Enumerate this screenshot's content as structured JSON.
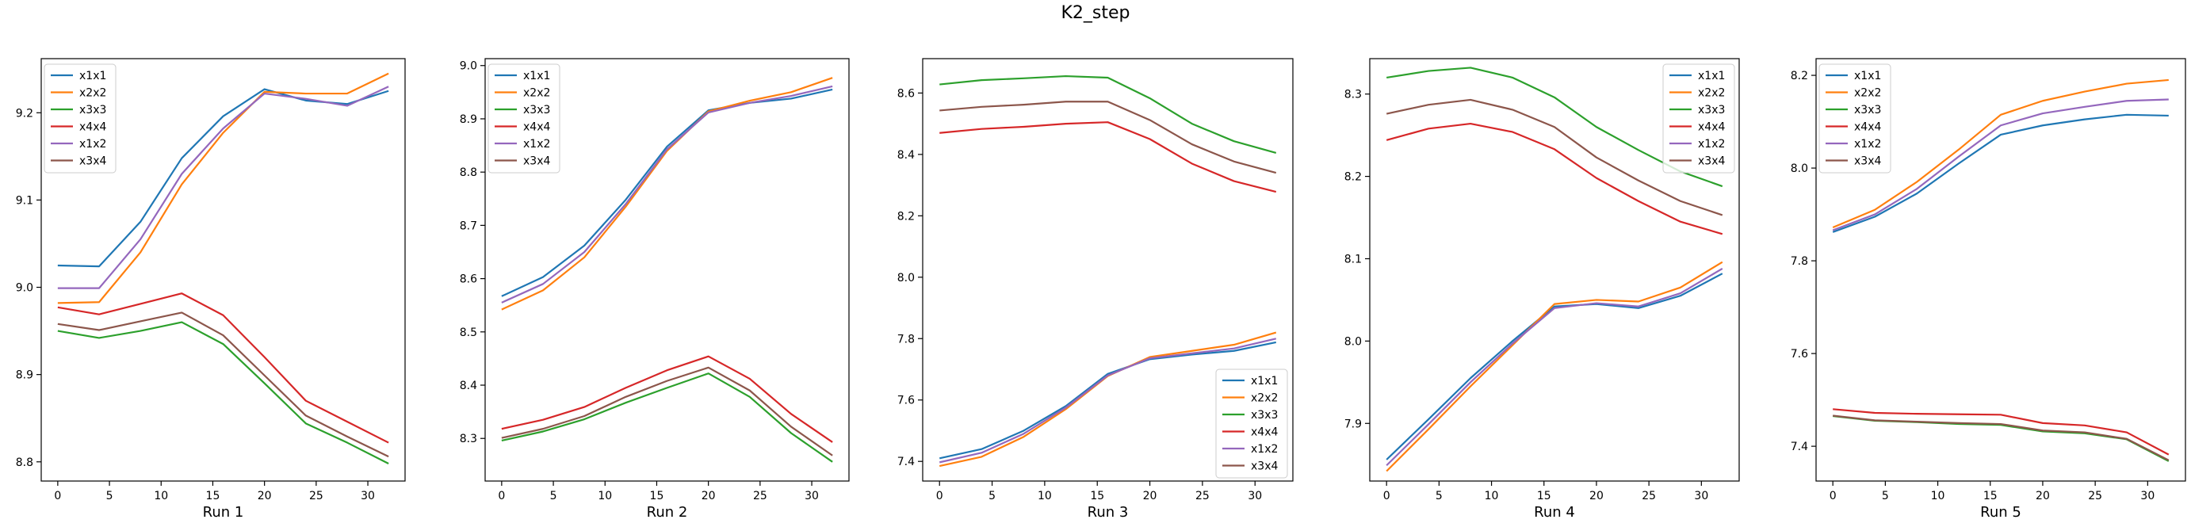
{
  "figure": {
    "title": "K2_step"
  },
  "colors": {
    "x1x1": "#1f77b4",
    "x2x2": "#ff7f0e",
    "x3x3": "#2ca02c",
    "x4x4": "#d62728",
    "x1x2": "#9467bd",
    "x3x4": "#8c564b"
  },
  "chart_data": [
    {
      "type": "line",
      "xlabel": "Run 1",
      "x": [
        0,
        4,
        8,
        12,
        16,
        20,
        24,
        28,
        32
      ],
      "xticks": [
        0,
        5,
        10,
        15,
        20,
        25,
        30
      ],
      "xlim": [
        -1.6,
        33.6
      ],
      "yticks": [
        8.8,
        8.9,
        9.0,
        9.1,
        9.2
      ],
      "ytick_labels": [
        "8.8",
        "8.9",
        "9.0",
        "9.1",
        "9.2"
      ],
      "ylim": [
        8.778,
        9.262
      ],
      "legend_loc": "upper-left",
      "series": [
        {
          "name": "x1x1",
          "values": [
            9.025,
            9.024,
            9.075,
            9.148,
            9.196,
            9.227,
            9.214,
            9.21,
            9.225
          ]
        },
        {
          "name": "x2x2",
          "values": [
            8.982,
            8.983,
            9.04,
            9.118,
            9.177,
            9.224,
            9.222,
            9.222,
            9.245
          ]
        },
        {
          "name": "x3x3",
          "values": [
            8.95,
            8.942,
            8.95,
            8.96,
            8.935,
            8.89,
            8.844,
            8.822,
            8.798
          ]
        },
        {
          "name": "x4x4",
          "values": [
            8.977,
            8.969,
            8.981,
            8.993,
            8.968,
            8.92,
            8.87,
            8.846,
            8.822
          ]
        },
        {
          "name": "x1x2",
          "values": [
            8.999,
            8.999,
            9.055,
            9.13,
            9.182,
            9.222,
            9.216,
            9.208,
            9.23
          ]
        },
        {
          "name": "x3x4",
          "values": [
            8.958,
            8.951,
            8.961,
            8.971,
            8.945,
            8.899,
            8.853,
            8.829,
            8.806
          ]
        }
      ]
    },
    {
      "type": "line",
      "xlabel": "Run 2",
      "x": [
        0,
        4,
        8,
        12,
        16,
        20,
        24,
        28,
        32
      ],
      "xticks": [
        0,
        5,
        10,
        15,
        20,
        25,
        30
      ],
      "xlim": [
        -1.6,
        33.6
      ],
      "yticks": [
        8.3,
        8.4,
        8.5,
        8.6,
        8.7,
        8.8,
        8.9,
        9.0
      ],
      "ytick_labels": [
        "8.3",
        "8.4",
        "8.5",
        "8.6",
        "8.7",
        "8.8",
        "8.9",
        "9.0"
      ],
      "ylim": [
        8.22,
        9.013
      ],
      "legend_loc": "upper-left",
      "series": [
        {
          "name": "x1x1",
          "values": [
            8.567,
            8.603,
            8.662,
            8.748,
            8.848,
            8.916,
            8.93,
            8.938,
            8.955
          ]
        },
        {
          "name": "x2x2",
          "values": [
            8.542,
            8.578,
            8.64,
            8.735,
            8.84,
            8.914,
            8.934,
            8.95,
            8.977
          ]
        },
        {
          "name": "x3x3",
          "values": [
            8.296,
            8.313,
            8.336,
            8.367,
            8.395,
            8.422,
            8.378,
            8.31,
            8.256
          ]
        },
        {
          "name": "x4x4",
          "values": [
            8.318,
            8.335,
            8.359,
            8.395,
            8.428,
            8.454,
            8.412,
            8.346,
            8.293
          ]
        },
        {
          "name": "x1x2",
          "values": [
            8.555,
            8.59,
            8.65,
            8.74,
            8.843,
            8.912,
            8.93,
            8.943,
            8.961
          ]
        },
        {
          "name": "x3x4",
          "values": [
            8.301,
            8.318,
            8.342,
            8.378,
            8.408,
            8.433,
            8.39,
            8.322,
            8.268
          ]
        }
      ]
    },
    {
      "type": "line",
      "xlabel": "Run 3",
      "x": [
        0,
        4,
        8,
        12,
        16,
        20,
        24,
        28,
        32
      ],
      "xticks": [
        0,
        5,
        10,
        15,
        20,
        25,
        30
      ],
      "xlim": [
        -1.6,
        33.6
      ],
      "yticks": [
        7.4,
        7.6,
        7.8,
        8.0,
        8.2,
        8.4,
        8.6
      ],
      "ytick_labels": [
        "7.4",
        "7.6",
        "7.8",
        "8.0",
        "8.2",
        "8.4",
        "8.6"
      ],
      "ylim": [
        7.336,
        8.712
      ],
      "legend_loc": "lower-right",
      "series": [
        {
          "name": "x1x1",
          "values": [
            7.41,
            7.44,
            7.5,
            7.58,
            7.685,
            7.733,
            7.748,
            7.76,
            7.788
          ]
        },
        {
          "name": "x2x2",
          "values": [
            7.385,
            7.415,
            7.48,
            7.57,
            7.678,
            7.74,
            7.76,
            7.78,
            7.82
          ]
        },
        {
          "name": "x3x3",
          "values": [
            8.628,
            8.642,
            8.648,
            8.655,
            8.65,
            8.583,
            8.5,
            8.443,
            8.405
          ]
        },
        {
          "name": "x4x4",
          "values": [
            8.47,
            8.483,
            8.49,
            8.5,
            8.505,
            8.45,
            8.37,
            8.313,
            8.278
          ]
        },
        {
          "name": "x1x2",
          "values": [
            7.397,
            7.428,
            7.49,
            7.575,
            7.68,
            7.736,
            7.752,
            7.768,
            7.8
          ]
        },
        {
          "name": "x3x4",
          "values": [
            8.543,
            8.555,
            8.562,
            8.572,
            8.572,
            8.512,
            8.433,
            8.377,
            8.34
          ]
        }
      ]
    },
    {
      "type": "line",
      "xlabel": "Run 4",
      "x": [
        0,
        4,
        8,
        12,
        16,
        20,
        24,
        28,
        32
      ],
      "xticks": [
        0,
        5,
        10,
        15,
        20,
        25,
        30
      ],
      "xlim": [
        -1.6,
        33.6
      ],
      "yticks": [
        7.9,
        8.0,
        8.1,
        8.2,
        8.3
      ],
      "ytick_labels": [
        "7.9",
        "8.0",
        "8.1",
        "8.2",
        "8.3"
      ],
      "ylim": [
        7.83,
        8.343
      ],
      "legend_loc": "upper-right",
      "series": [
        {
          "name": "x1x1",
          "values": [
            7.856,
            7.905,
            7.955,
            8.0,
            8.042,
            8.045,
            8.04,
            8.055,
            8.082
          ]
        },
        {
          "name": "x2x2",
          "values": [
            7.842,
            7.893,
            7.945,
            7.995,
            8.045,
            8.05,
            8.048,
            8.065,
            8.096
          ]
        },
        {
          "name": "x3x3",
          "values": [
            8.32,
            8.328,
            8.332,
            8.32,
            8.296,
            8.26,
            8.232,
            8.206,
            8.188
          ]
        },
        {
          "name": "x4x4",
          "values": [
            8.244,
            8.258,
            8.264,
            8.254,
            8.233,
            8.198,
            8.17,
            8.145,
            8.13
          ]
        },
        {
          "name": "x1x2",
          "values": [
            7.849,
            7.899,
            7.95,
            7.997,
            8.04,
            8.046,
            8.042,
            8.058,
            8.088
          ]
        },
        {
          "name": "x3x4",
          "values": [
            8.276,
            8.287,
            8.293,
            8.281,
            8.26,
            8.223,
            8.195,
            8.17,
            8.153
          ]
        }
      ]
    },
    {
      "type": "line",
      "xlabel": "Run 5",
      "x": [
        0,
        4,
        8,
        12,
        16,
        20,
        24,
        28,
        32
      ],
      "xticks": [
        0,
        5,
        10,
        15,
        20,
        25,
        30
      ],
      "xlim": [
        -1.6,
        33.6
      ],
      "yticks": [
        7.4,
        7.6,
        7.8,
        8.0,
        8.2
      ],
      "ytick_labels": [
        "7.4",
        "7.6",
        "7.8",
        "8.0",
        "8.2"
      ],
      "ylim": [
        7.325,
        8.236
      ],
      "legend_loc": "upper-left",
      "series": [
        {
          "name": "x1x1",
          "values": [
            7.862,
            7.895,
            7.945,
            8.01,
            8.072,
            8.092,
            8.105,
            8.115,
            8.113
          ]
        },
        {
          "name": "x2x2",
          "values": [
            7.872,
            7.91,
            7.97,
            8.04,
            8.115,
            8.145,
            8.165,
            8.182,
            8.19
          ]
        },
        {
          "name": "x3x3",
          "values": [
            7.465,
            7.455,
            7.452,
            7.448,
            7.446,
            7.432,
            7.428,
            7.415,
            7.368
          ]
        },
        {
          "name": "x4x4",
          "values": [
            7.48,
            7.472,
            7.47,
            7.469,
            7.468,
            7.45,
            7.445,
            7.43,
            7.382
          ]
        },
        {
          "name": "x1x2",
          "values": [
            7.866,
            7.9,
            7.955,
            8.025,
            8.092,
            8.118,
            8.132,
            8.145,
            8.148
          ]
        },
        {
          "name": "x3x4",
          "values": [
            7.466,
            7.456,
            7.453,
            7.45,
            7.448,
            7.434,
            7.43,
            7.416,
            7.37
          ]
        }
      ]
    }
  ]
}
